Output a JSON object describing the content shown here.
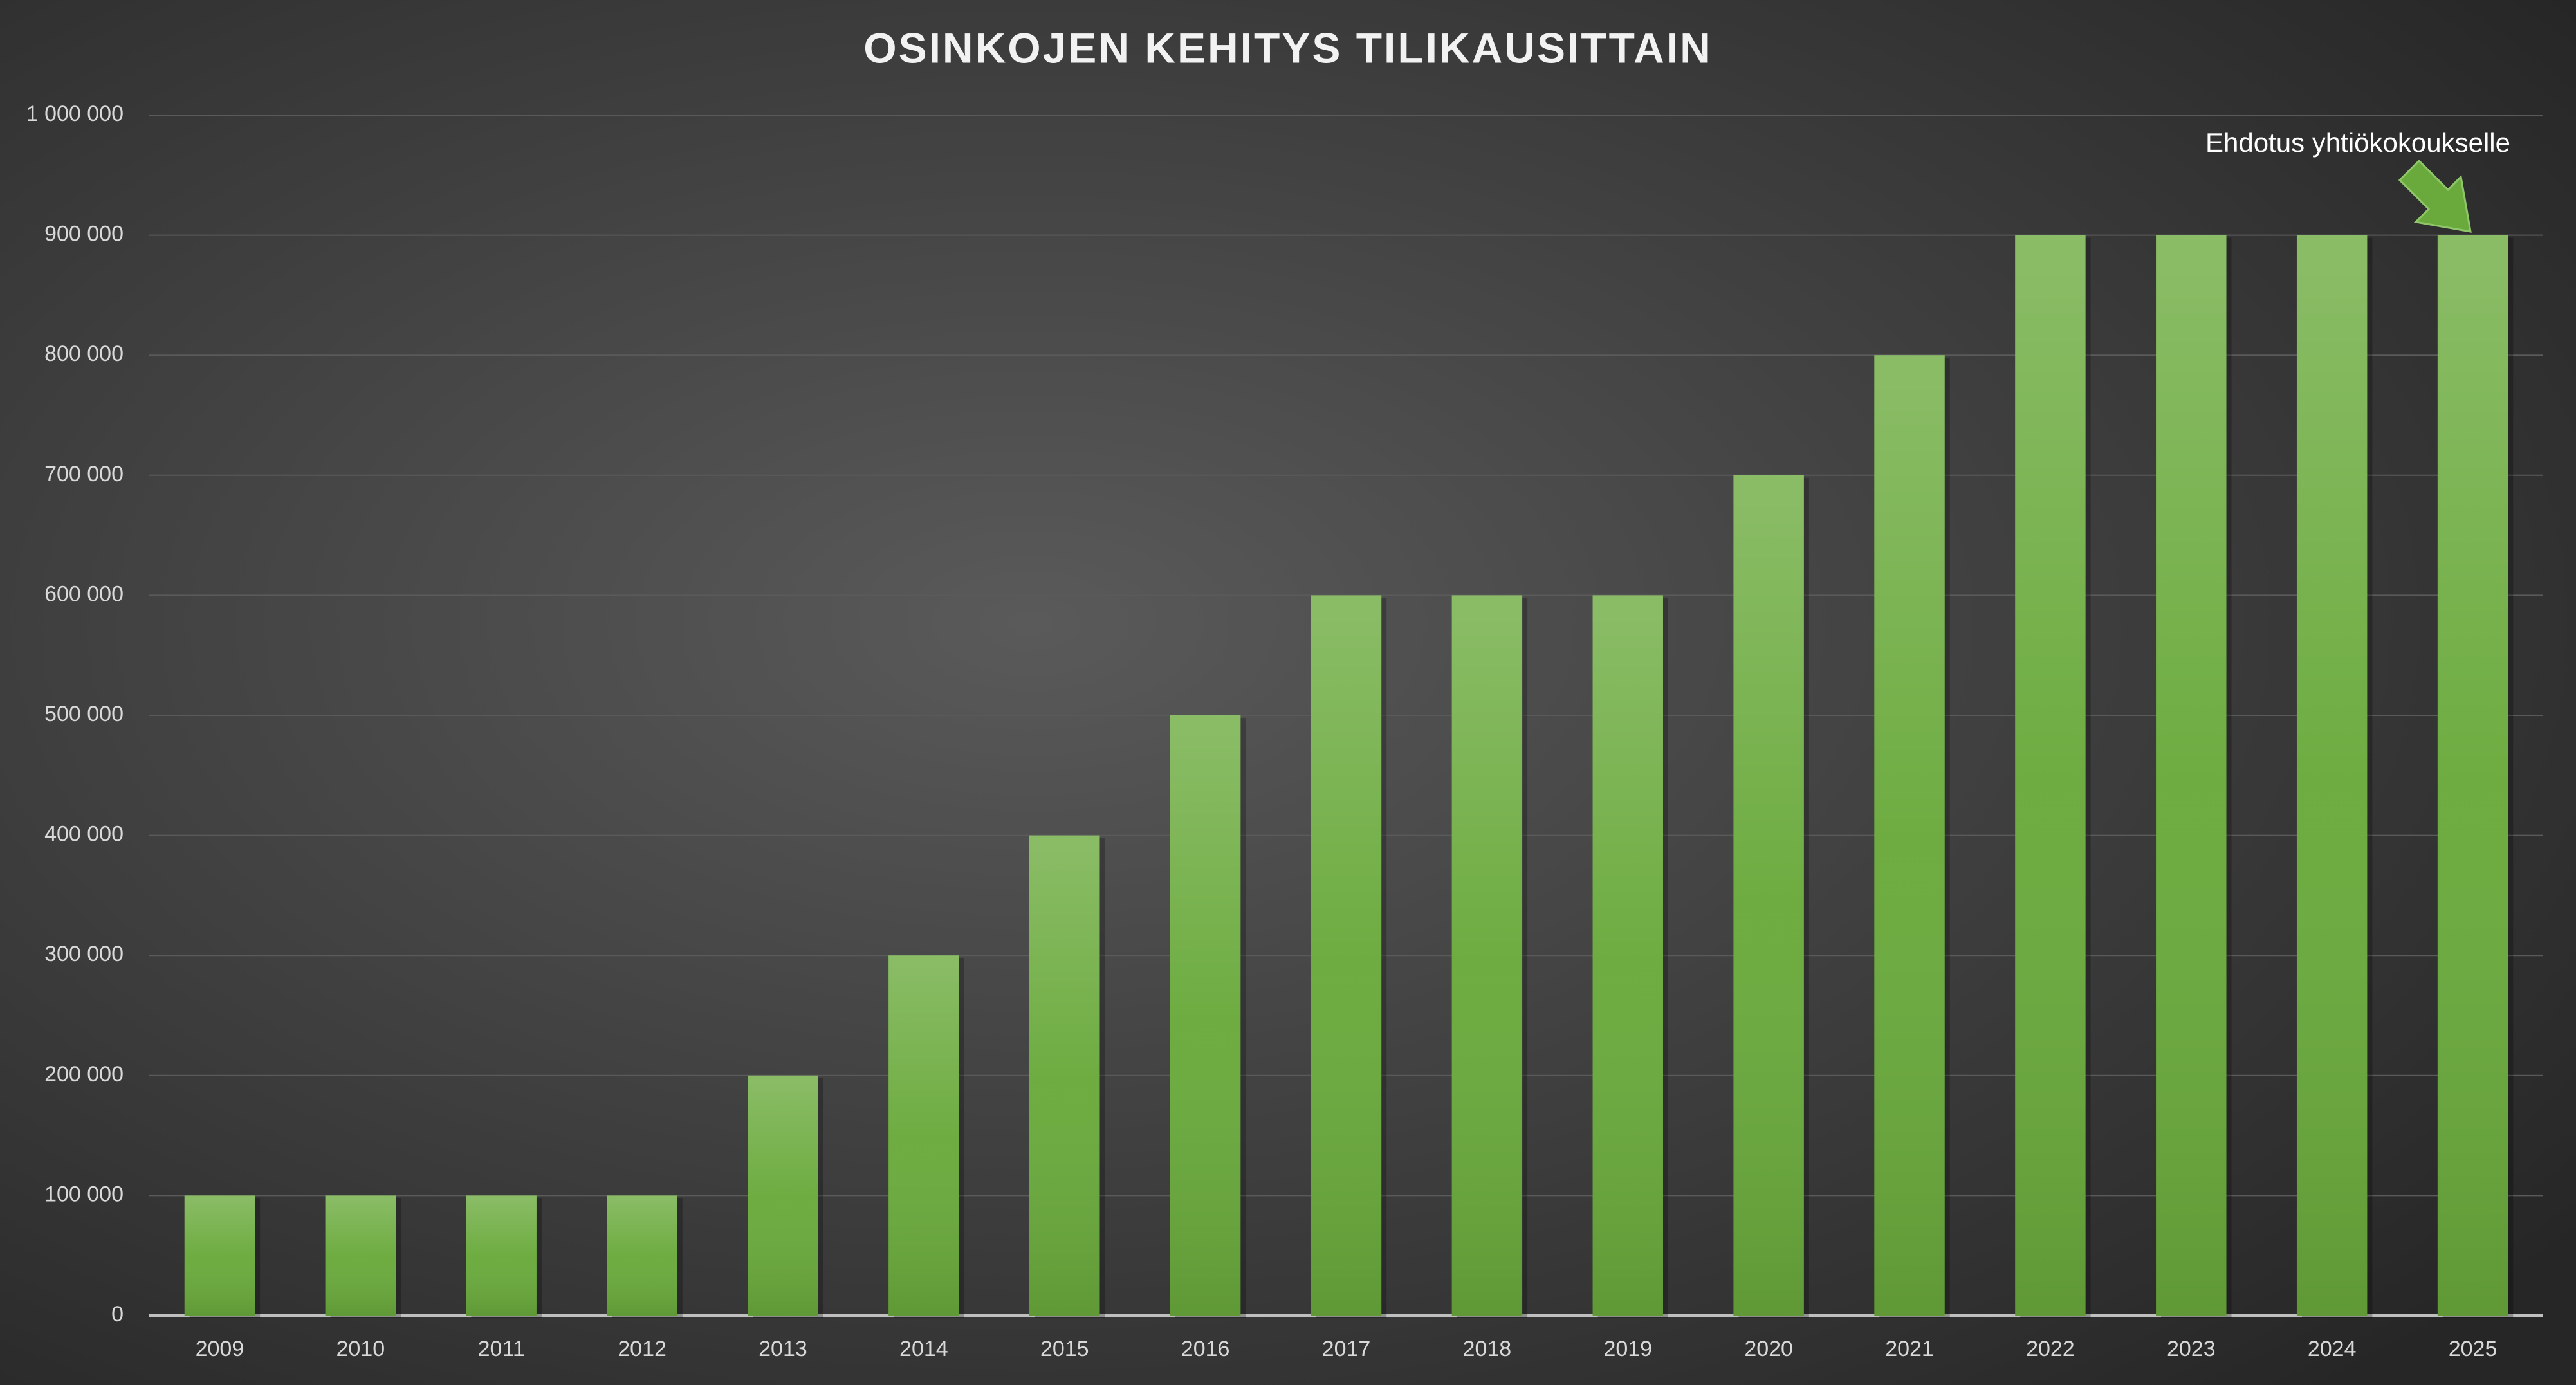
{
  "chart_data": {
    "type": "bar",
    "title": "OSINKOJEN KEHITYS TILIKAUSITTAIN",
    "categories": [
      "2009",
      "2010",
      "2011",
      "2012",
      "2013",
      "2014",
      "2015",
      "2016",
      "2017",
      "2018",
      "2019",
      "2020",
      "2021",
      "2022",
      "2023",
      "2024",
      "2025"
    ],
    "values": [
      100000,
      100000,
      100000,
      100000,
      200000,
      300000,
      400000,
      500000,
      600000,
      600000,
      600000,
      700000,
      800000,
      900000,
      900000,
      900000,
      900000
    ],
    "color": "#6aaa3c",
    "ylim": [
      0,
      1000000
    ],
    "yticks": [
      0,
      {
        "value": 100000,
        "label": "100 000"
      },
      {
        "value": 200000,
        "label": "200 000"
      },
      {
        "value": 300000,
        "label": "300 000"
      },
      {
        "value": 400000,
        "label": "400 000"
      },
      {
        "value": 500000,
        "label": "500 000"
      },
      {
        "value": 600000,
        "label": "600 000"
      },
      {
        "value": 700000,
        "label": "700 000"
      },
      {
        "value": 800000,
        "label": "800 000"
      },
      {
        "value": 900000,
        "label": "900 000"
      },
      {
        "value": 1000000,
        "label": "1 000 000"
      }
    ],
    "grid": true,
    "annotation": "Ehdotus yhtiökokoukselle"
  }
}
